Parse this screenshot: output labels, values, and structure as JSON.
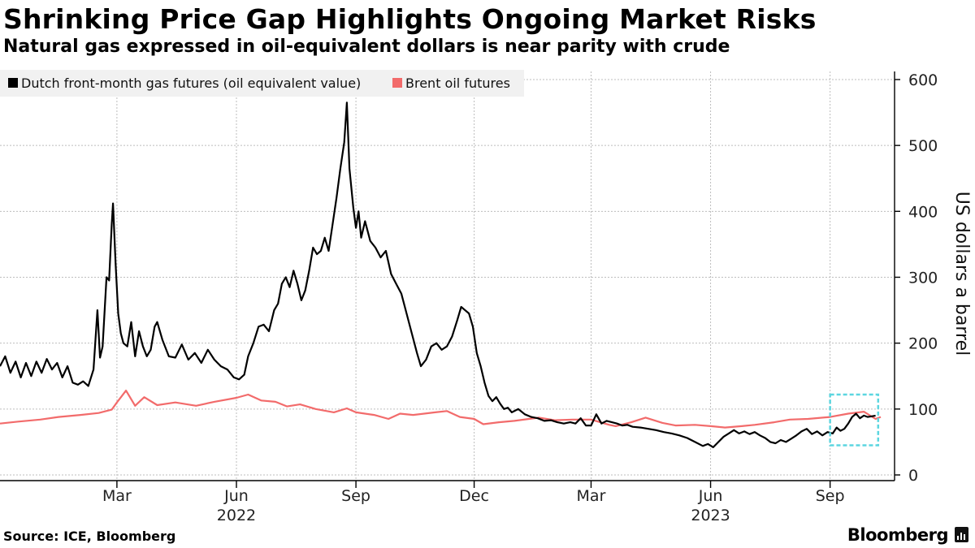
{
  "header": {
    "title": "Shrinking Price Gap Highlights Ongoing Market Risks",
    "subtitle": "Natural gas expressed in oil-equivalent dollars is near parity with crude"
  },
  "footer": {
    "source": "Source: ICE, Bloomberg",
    "brand": "Bloomberg",
    "brand_icon": "bloomberg-chart-icon"
  },
  "colors": {
    "gas": "#000000",
    "brent": "#f26b6b",
    "highlight": "#5cd6e0",
    "grid": "#bdbdbd"
  },
  "chart_data": {
    "type": "line",
    "title": "Shrinking Price Gap Highlights Ongoing Market Risks",
    "subtitle": "Natural gas expressed in oil-equivalent dollars is near parity with crude",
    "ylabel": "US dollars a barrel",
    "y_axis_side": "right",
    "ylim": [
      0,
      610
    ],
    "yticks": [
      0,
      100,
      200,
      300,
      400,
      500,
      600
    ],
    "xlim": [
      "2021-12-01",
      "2023-10-20"
    ],
    "xticks": [
      {
        "date": "2022-03-01",
        "label": "Mar"
      },
      {
        "date": "2022-06-01",
        "label": "Jun"
      },
      {
        "date": "2022-09-01",
        "label": "Sep"
      },
      {
        "date": "2022-12-01",
        "label": "Dec"
      },
      {
        "date": "2023-03-01",
        "label": "Mar"
      },
      {
        "date": "2023-06-01",
        "label": "Jun"
      },
      {
        "date": "2023-09-01",
        "label": "Sep"
      }
    ],
    "year_labels": [
      {
        "date": "2022-06-01",
        "label": "2022"
      },
      {
        "date": "2023-06-01",
        "label": "2023"
      }
    ],
    "grid": true,
    "legend_position": "top-left",
    "highlight_box": {
      "x": [
        "2023-09-01",
        "2023-10-08"
      ],
      "y": [
        45,
        122
      ]
    },
    "series": [
      {
        "name": "Dutch front-month gas futures (oil equivalent value)",
        "color": "#000000",
        "points": [
          [
            "2021-12-01",
            165
          ],
          [
            "2021-12-05",
            180
          ],
          [
            "2021-12-09",
            155
          ],
          [
            "2021-12-13",
            172
          ],
          [
            "2021-12-17",
            148
          ],
          [
            "2021-12-21",
            170
          ],
          [
            "2021-12-25",
            150
          ],
          [
            "2021-12-29",
            172
          ],
          [
            "2022-01-02",
            155
          ],
          [
            "2022-01-06",
            176
          ],
          [
            "2022-01-10",
            160
          ],
          [
            "2022-01-14",
            170
          ],
          [
            "2022-01-18",
            148
          ],
          [
            "2022-01-22",
            165
          ],
          [
            "2022-01-26",
            140
          ],
          [
            "2022-01-30",
            137
          ],
          [
            "2022-02-03",
            142
          ],
          [
            "2022-02-07",
            135
          ],
          [
            "2022-02-11",
            160
          ],
          [
            "2022-02-14",
            250
          ],
          [
            "2022-02-16",
            178
          ],
          [
            "2022-02-18",
            195
          ],
          [
            "2022-02-21",
            300
          ],
          [
            "2022-02-23",
            295
          ],
          [
            "2022-02-25",
            380
          ],
          [
            "2022-02-26",
            412
          ],
          [
            "2022-02-28",
            320
          ],
          [
            "2022-03-02",
            245
          ],
          [
            "2022-03-04",
            215
          ],
          [
            "2022-03-06",
            200
          ],
          [
            "2022-03-09",
            195
          ],
          [
            "2022-03-12",
            232
          ],
          [
            "2022-03-15",
            180
          ],
          [
            "2022-03-18",
            218
          ],
          [
            "2022-03-21",
            195
          ],
          [
            "2022-03-24",
            180
          ],
          [
            "2022-03-27",
            190
          ],
          [
            "2022-03-30",
            225
          ],
          [
            "2022-04-01",
            232
          ],
          [
            "2022-04-05",
            205
          ],
          [
            "2022-04-10",
            180
          ],
          [
            "2022-04-15",
            178
          ],
          [
            "2022-04-20",
            198
          ],
          [
            "2022-04-25",
            175
          ],
          [
            "2022-04-30",
            185
          ],
          [
            "2022-05-05",
            170
          ],
          [
            "2022-05-10",
            190
          ],
          [
            "2022-05-15",
            175
          ],
          [
            "2022-05-20",
            165
          ],
          [
            "2022-05-25",
            160
          ],
          [
            "2022-05-30",
            148
          ],
          [
            "2022-06-03",
            145
          ],
          [
            "2022-06-07",
            152
          ],
          [
            "2022-06-10",
            180
          ],
          [
            "2022-06-14",
            200
          ],
          [
            "2022-06-18",
            225
          ],
          [
            "2022-06-22",
            228
          ],
          [
            "2022-06-26",
            218
          ],
          [
            "2022-06-30",
            250
          ],
          [
            "2022-07-03",
            260
          ],
          [
            "2022-07-06",
            290
          ],
          [
            "2022-07-09",
            300
          ],
          [
            "2022-07-12",
            285
          ],
          [
            "2022-07-15",
            310
          ],
          [
            "2022-07-18",
            290
          ],
          [
            "2022-07-21",
            265
          ],
          [
            "2022-07-24",
            280
          ],
          [
            "2022-07-27",
            310
          ],
          [
            "2022-07-30",
            345
          ],
          [
            "2022-08-02",
            335
          ],
          [
            "2022-08-05",
            340
          ],
          [
            "2022-08-08",
            360
          ],
          [
            "2022-08-11",
            340
          ],
          [
            "2022-08-14",
            380
          ],
          [
            "2022-08-17",
            420
          ],
          [
            "2022-08-20",
            465
          ],
          [
            "2022-08-23",
            505
          ],
          [
            "2022-08-25",
            565
          ],
          [
            "2022-08-27",
            465
          ],
          [
            "2022-08-30",
            405
          ],
          [
            "2022-09-01",
            375
          ],
          [
            "2022-09-03",
            400
          ],
          [
            "2022-09-05",
            360
          ],
          [
            "2022-09-08",
            385
          ],
          [
            "2022-09-12",
            355
          ],
          [
            "2022-09-16",
            345
          ],
          [
            "2022-09-20",
            330
          ],
          [
            "2022-09-24",
            340
          ],
          [
            "2022-09-28",
            305
          ],
          [
            "2022-10-02",
            290
          ],
          [
            "2022-10-06",
            275
          ],
          [
            "2022-10-10",
            245
          ],
          [
            "2022-10-14",
            215
          ],
          [
            "2022-10-18",
            185
          ],
          [
            "2022-10-21",
            165
          ],
          [
            "2022-10-25",
            175
          ],
          [
            "2022-10-29",
            195
          ],
          [
            "2022-11-02",
            200
          ],
          [
            "2022-11-06",
            190
          ],
          [
            "2022-11-10",
            195
          ],
          [
            "2022-11-14",
            210
          ],
          [
            "2022-11-18",
            235
          ],
          [
            "2022-11-21",
            255
          ],
          [
            "2022-11-24",
            250
          ],
          [
            "2022-11-27",
            245
          ],
          [
            "2022-11-30",
            225
          ],
          [
            "2022-12-03",
            185
          ],
          [
            "2022-12-06",
            165
          ],
          [
            "2022-12-09",
            140
          ],
          [
            "2022-12-12",
            120
          ],
          [
            "2022-12-15",
            112
          ],
          [
            "2022-12-18",
            118
          ],
          [
            "2022-12-21",
            108
          ],
          [
            "2022-12-24",
            100
          ],
          [
            "2022-12-27",
            102
          ],
          [
            "2022-12-30",
            95
          ],
          [
            "2023-01-04",
            100
          ],
          [
            "2023-01-09",
            92
          ],
          [
            "2023-01-14",
            88
          ],
          [
            "2023-01-19",
            86
          ],
          [
            "2023-01-24",
            82
          ],
          [
            "2023-01-29",
            83
          ],
          [
            "2023-02-03",
            80
          ],
          [
            "2023-02-08",
            78
          ],
          [
            "2023-02-13",
            80
          ],
          [
            "2023-02-17",
            78
          ],
          [
            "2023-02-21",
            86
          ],
          [
            "2023-02-25",
            75
          ],
          [
            "2023-03-01",
            75
          ],
          [
            "2023-03-05",
            92
          ],
          [
            "2023-03-09",
            78
          ],
          [
            "2023-03-13",
            82
          ],
          [
            "2023-03-17",
            80
          ],
          [
            "2023-03-21",
            78
          ],
          [
            "2023-03-25",
            75
          ],
          [
            "2023-03-29",
            76
          ],
          [
            "2023-04-02",
            73
          ],
          [
            "2023-04-08",
            72
          ],
          [
            "2023-04-14",
            70
          ],
          [
            "2023-04-20",
            68
          ],
          [
            "2023-04-26",
            65
          ],
          [
            "2023-05-02",
            63
          ],
          [
            "2023-05-08",
            60
          ],
          [
            "2023-05-14",
            56
          ],
          [
            "2023-05-20",
            50
          ],
          [
            "2023-05-26",
            44
          ],
          [
            "2023-05-30",
            47
          ],
          [
            "2023-06-03",
            42
          ],
          [
            "2023-06-07",
            50
          ],
          [
            "2023-06-11",
            58
          ],
          [
            "2023-06-15",
            63
          ],
          [
            "2023-06-19",
            68
          ],
          [
            "2023-06-23",
            63
          ],
          [
            "2023-06-27",
            66
          ],
          [
            "2023-07-01",
            62
          ],
          [
            "2023-07-05",
            65
          ],
          [
            "2023-07-09",
            60
          ],
          [
            "2023-07-13",
            56
          ],
          [
            "2023-07-17",
            50
          ],
          [
            "2023-07-21",
            48
          ],
          [
            "2023-07-25",
            53
          ],
          [
            "2023-07-29",
            50
          ],
          [
            "2023-08-02",
            55
          ],
          [
            "2023-08-06",
            60
          ],
          [
            "2023-08-10",
            66
          ],
          [
            "2023-08-14",
            70
          ],
          [
            "2023-08-18",
            62
          ],
          [
            "2023-08-22",
            66
          ],
          [
            "2023-08-26",
            60
          ],
          [
            "2023-08-30",
            65
          ],
          [
            "2023-09-03",
            63
          ],
          [
            "2023-09-06",
            72
          ],
          [
            "2023-09-09",
            67
          ],
          [
            "2023-09-12",
            70
          ],
          [
            "2023-09-15",
            78
          ],
          [
            "2023-09-18",
            88
          ],
          [
            "2023-09-21",
            93
          ],
          [
            "2023-09-24",
            86
          ],
          [
            "2023-09-27",
            90
          ],
          [
            "2023-09-30",
            88
          ],
          [
            "2023-10-03",
            89
          ],
          [
            "2023-10-06",
            90
          ]
        ]
      },
      {
        "name": "Brent oil futures",
        "color": "#f26b6b",
        "points": [
          [
            "2021-12-01",
            78
          ],
          [
            "2021-12-15",
            81
          ],
          [
            "2022-01-01",
            84
          ],
          [
            "2022-01-15",
            88
          ],
          [
            "2022-02-01",
            91
          ],
          [
            "2022-02-15",
            94
          ],
          [
            "2022-02-25",
            99
          ],
          [
            "2022-03-01",
            110
          ],
          [
            "2022-03-08",
            128
          ],
          [
            "2022-03-15",
            105
          ],
          [
            "2022-03-22",
            118
          ],
          [
            "2022-04-01",
            106
          ],
          [
            "2022-04-15",
            110
          ],
          [
            "2022-05-01",
            105
          ],
          [
            "2022-05-15",
            111
          ],
          [
            "2022-06-01",
            117
          ],
          [
            "2022-06-10",
            122
          ],
          [
            "2022-06-20",
            113
          ],
          [
            "2022-07-01",
            111
          ],
          [
            "2022-07-10",
            104
          ],
          [
            "2022-07-20",
            107
          ],
          [
            "2022-08-01",
            100
          ],
          [
            "2022-08-15",
            95
          ],
          [
            "2022-08-25",
            101
          ],
          [
            "2022-09-01",
            95
          ],
          [
            "2022-09-15",
            91
          ],
          [
            "2022-09-26",
            85
          ],
          [
            "2022-10-05",
            93
          ],
          [
            "2022-10-15",
            91
          ],
          [
            "2022-11-01",
            95
          ],
          [
            "2022-11-10",
            97
          ],
          [
            "2022-11-20",
            88
          ],
          [
            "2022-12-01",
            85
          ],
          [
            "2022-12-08",
            77
          ],
          [
            "2022-12-20",
            80
          ],
          [
            "2023-01-01",
            82
          ],
          [
            "2023-01-20",
            87
          ],
          [
            "2023-02-01",
            83
          ],
          [
            "2023-02-15",
            84
          ],
          [
            "2023-03-01",
            84
          ],
          [
            "2023-03-15",
            76
          ],
          [
            "2023-03-20",
            74
          ],
          [
            "2023-04-01",
            80
          ],
          [
            "2023-04-12",
            87
          ],
          [
            "2023-04-25",
            79
          ],
          [
            "2023-05-05",
            75
          ],
          [
            "2023-05-20",
            76
          ],
          [
            "2023-06-01",
            74
          ],
          [
            "2023-06-12",
            72
          ],
          [
            "2023-06-25",
            74
          ],
          [
            "2023-07-05",
            76
          ],
          [
            "2023-07-20",
            80
          ],
          [
            "2023-08-01",
            84
          ],
          [
            "2023-08-15",
            85
          ],
          [
            "2023-09-01",
            88
          ],
          [
            "2023-09-15",
            93
          ],
          [
            "2023-09-27",
            96
          ],
          [
            "2023-10-06",
            85
          ],
          [
            "2023-10-10",
            88
          ]
        ]
      }
    ]
  }
}
